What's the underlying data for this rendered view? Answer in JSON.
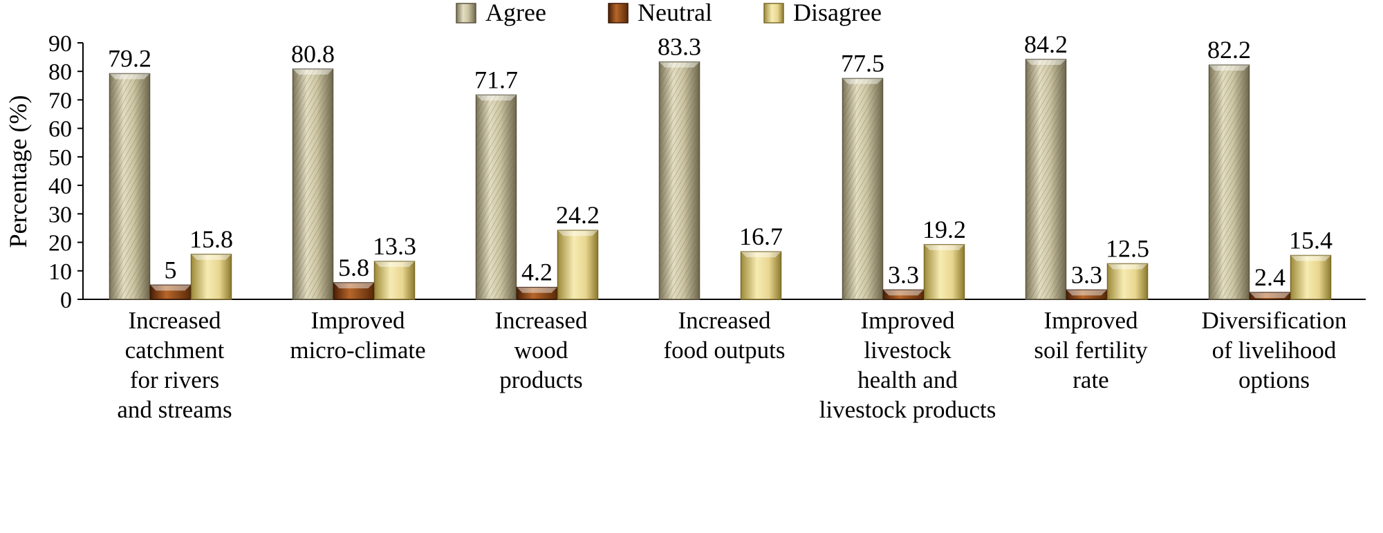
{
  "chart_data": {
    "type": "bar",
    "ylabel": "Percentage (%)",
    "ylim": [
      0,
      90
    ],
    "yticks": [
      0,
      10,
      20,
      30,
      40,
      50,
      60,
      70,
      80,
      90
    ],
    "legend_position": "top-center",
    "categories": [
      [
        "Increased",
        "catchment",
        "for rivers",
        "and streams"
      ],
      [
        "Improved",
        "micro-climate"
      ],
      [
        "Increased",
        "wood",
        "products"
      ],
      [
        "Increased",
        "food outputs"
      ],
      [
        "Improved",
        "livestock",
        "health and",
        "livestock products"
      ],
      [
        "Improved",
        "soil fertility",
        "rate"
      ],
      [
        "Diversification",
        "of livelihood",
        "options"
      ]
    ],
    "series": [
      {
        "name": "Agree",
        "color": "#cdc6a4",
        "values": [
          79.2,
          80.8,
          71.7,
          83.3,
          77.5,
          84.2,
          82.2
        ],
        "labels": [
          "79.2",
          "80.8",
          "71.7",
          "83.3",
          "77.5",
          "84.2",
          "82.2"
        ]
      },
      {
        "name": "Neutral",
        "color": "#8b4513",
        "values": [
          5,
          5.8,
          4.2,
          0,
          3.3,
          3.3,
          2.4
        ],
        "labels": [
          "5",
          "5.8",
          "4.2",
          "",
          "3.3",
          "3.3",
          "2.4"
        ]
      },
      {
        "name": "Disagree",
        "color": "#e8d690",
        "values": [
          15.8,
          13.3,
          24.2,
          16.7,
          19.2,
          12.5,
          15.4
        ],
        "labels": [
          "15.8",
          "13.3",
          "24.2",
          "16.7",
          "19.2",
          "12.5",
          "15.4"
        ]
      }
    ]
  }
}
